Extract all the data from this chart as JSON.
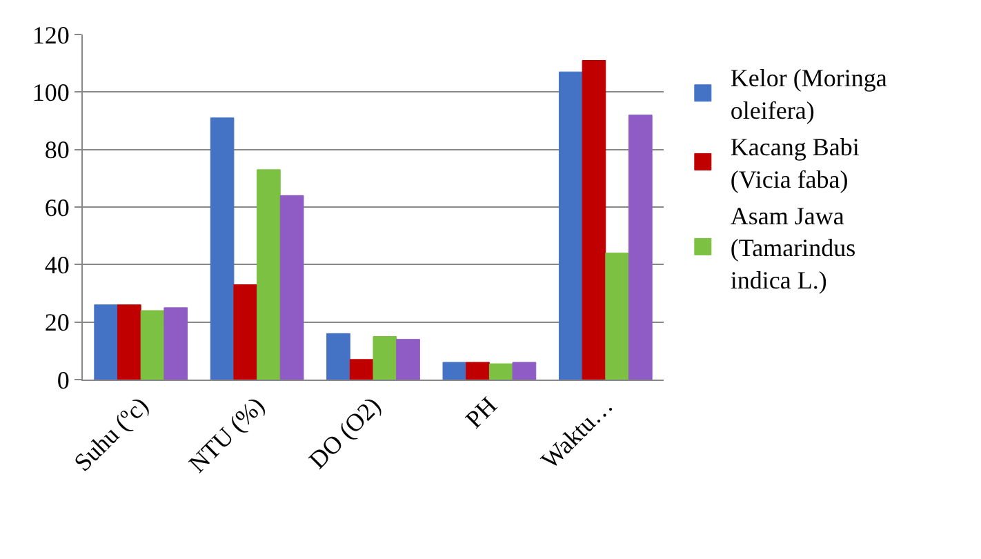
{
  "chart_data": {
    "type": "bar",
    "categories": [
      "Suhu (ºc)",
      "NTU (%)",
      "DO (O2)",
      "PH",
      "Waktu…"
    ],
    "series": [
      {
        "name": "Kelor (Moringa oleifera)",
        "color": "#4472c4",
        "values": [
          26,
          91,
          16,
          6,
          107
        ]
      },
      {
        "name": "Kacang Babi (Vicia faba)",
        "color": "#c00000",
        "values": [
          26,
          33,
          7,
          6,
          111
        ]
      },
      {
        "name": "Asam Jawa (Tamarindus indica L.)",
        "color": "#7cc142",
        "values": [
          24,
          73,
          15,
          5.5,
          44
        ]
      },
      {
        "color": "#8e5cc4",
        "values": [
          25,
          64,
          14,
          6,
          92
        ]
      }
    ],
    "ylim": [
      0,
      120
    ],
    "yticks": [
      0,
      20,
      40,
      60,
      80,
      100,
      120
    ],
    "grid": "y",
    "legend": "right"
  }
}
